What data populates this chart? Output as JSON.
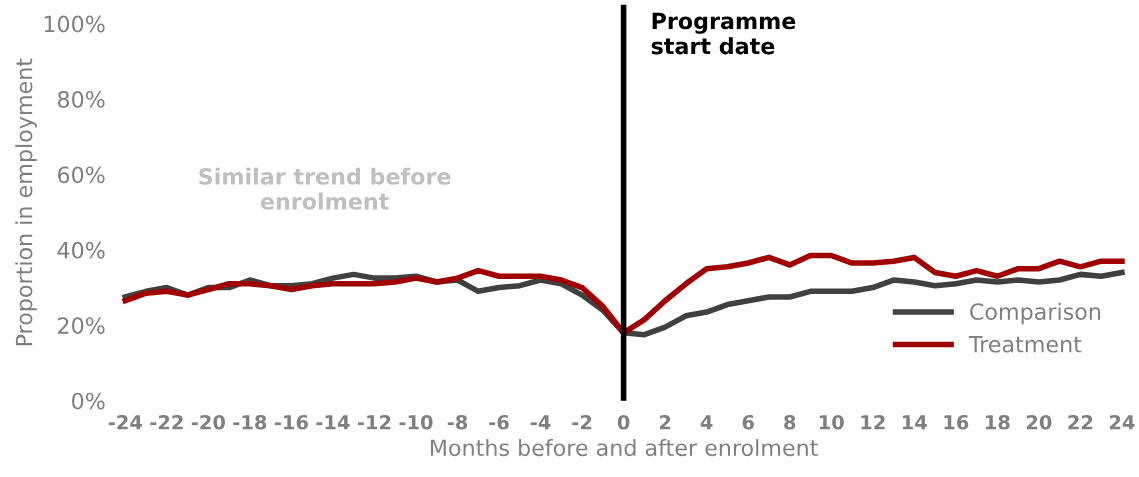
{
  "chart_data": {
    "type": "line",
    "xlabel": "Months before and after enrolment",
    "ylabel": "Proportion in employment",
    "x": [
      -24,
      -23,
      -22,
      -21,
      -20,
      -19,
      -18,
      -17,
      -16,
      -15,
      -14,
      -13,
      -12,
      -11,
      -10,
      -9,
      -8,
      -7,
      -6,
      -5,
      -4,
      -3,
      -2,
      -1,
      0,
      1,
      2,
      3,
      4,
      5,
      6,
      7,
      8,
      9,
      10,
      11,
      12,
      13,
      14,
      15,
      16,
      17,
      18,
      19,
      20,
      21,
      22,
      23,
      24
    ],
    "series": [
      {
        "name": "Comparison",
        "color": "#404040",
        "values": [
          27.5,
          29,
          30,
          28,
          30,
          30,
          32,
          30.5,
          30.5,
          31,
          32.5,
          33.5,
          32.5,
          32.5,
          33,
          31.5,
          32,
          29,
          30,
          30.5,
          32,
          31,
          28,
          24,
          18,
          17.5,
          19.5,
          22.5,
          23.5,
          25.5,
          26.5,
          27.5,
          27.5,
          29,
          29,
          29,
          30,
          32,
          31.5,
          30.5,
          31,
          32,
          31.5,
          32,
          31.5,
          32,
          33.5,
          33,
          34
        ]
      },
      {
        "name": "Treatment",
        "color": "#a00000",
        "values": [
          26.5,
          28.5,
          29,
          28,
          29.5,
          31,
          31,
          30.5,
          29.5,
          30.5,
          31,
          31,
          31,
          31.5,
          32.5,
          31.5,
          32.5,
          34.5,
          33,
          33,
          33,
          32,
          30,
          25,
          18,
          21.5,
          26.5,
          31,
          35,
          35.5,
          36.5,
          38,
          36,
          38.5,
          38.5,
          36.5,
          36.5,
          37,
          38,
          34,
          33,
          34.5,
          33,
          35,
          35,
          37,
          35.5,
          37,
          37
        ]
      }
    ],
    "xlim": [
      -24,
      24
    ],
    "xticks": [
      -24,
      -22,
      -20,
      -18,
      -16,
      -14,
      -12,
      -10,
      -8,
      -6,
      -4,
      -2,
      0,
      2,
      4,
      6,
      8,
      10,
      12,
      14,
      16,
      18,
      20,
      22,
      24
    ],
    "ylim": [
      0,
      105
    ],
    "yticks": [
      {
        "value": 0,
        "label": "0%"
      },
      {
        "value": 20,
        "label": "20%"
      },
      {
        "value": 40,
        "label": "40%"
      },
      {
        "value": 60,
        "label": "60%"
      },
      {
        "value": 80,
        "label": "80%"
      },
      {
        "value": 100,
        "label": "100%"
      }
    ],
    "ref_lines": [
      {
        "axis": "x",
        "value": 0,
        "label": "Programme\nstart date",
        "color": "#000000"
      }
    ],
    "annotations": [
      "Similar trend before\nenrolment"
    ],
    "grid": false,
    "legend": "bottom right",
    "marker": "none",
    "line_style": "solid"
  }
}
